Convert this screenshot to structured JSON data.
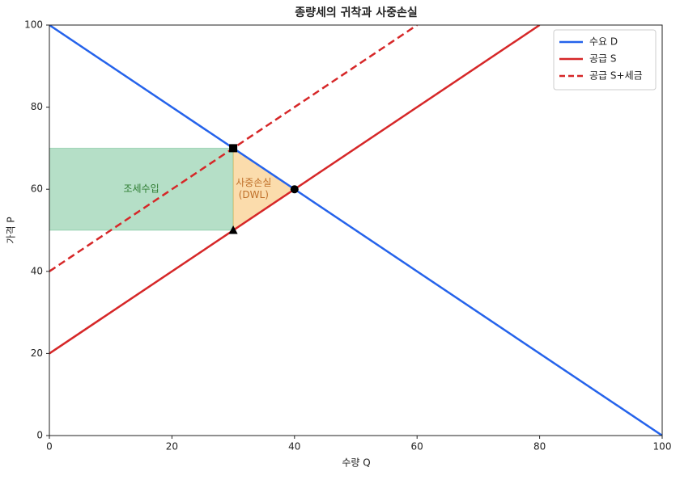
{
  "chart_data": {
    "type": "line",
    "title": "종량세의 귀착과 사중손실",
    "x_label": "수량 Q",
    "y_label": "가격 P",
    "xlim": [
      0,
      100
    ],
    "ylim": [
      0,
      100
    ],
    "xticks": [
      0,
      20,
      40,
      60,
      80,
      100
    ],
    "yticks": [
      0,
      20,
      40,
      60,
      80,
      100
    ],
    "legend": "upper right",
    "series": [
      {
        "name": "수요 D",
        "color": "#2563eb",
        "linestyle": "solid",
        "x": [
          0,
          100
        ],
        "values": [
          100,
          0
        ]
      },
      {
        "name": "공급 S",
        "color": "#d62728",
        "linestyle": "solid",
        "x": [
          0,
          80
        ],
        "values": [
          20,
          100
        ]
      },
      {
        "name": "공급 S+세금",
        "color": "#d62728",
        "linestyle": "dashed",
        "x": [
          0,
          60
        ],
        "values": [
          40,
          100
        ]
      }
    ],
    "areas": [
      {
        "label_lines": [
          "조세수입"
        ],
        "color": "#2ca25f",
        "text_color": "#2e7d32",
        "x": [
          0,
          30,
          30,
          0
        ],
        "values": [
          50,
          50,
          70,
          70
        ]
      },
      {
        "label_lines": [
          "사중손실",
          "(DWL)"
        ],
        "color": "#f39c12",
        "text_color": "#c0702a",
        "x": [
          30,
          30,
          40
        ],
        "values": [
          70,
          50,
          60
        ]
      }
    ],
    "points": [
      {
        "marker": "square",
        "x": 30,
        "value": 70
      },
      {
        "marker": "triangle",
        "x": 30,
        "value": 50
      },
      {
        "marker": "circle",
        "x": 40,
        "value": 60
      }
    ]
  }
}
